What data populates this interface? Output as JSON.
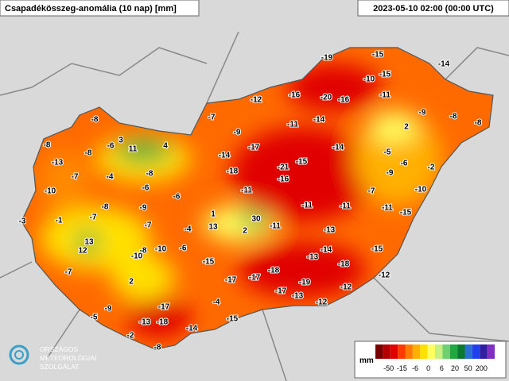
{
  "header": {
    "title": "Csapadékösszeg-anomália (10 nap) [mm]",
    "time": "2023-05-10 02:00 (00:00 UTC)"
  },
  "stations": [
    -19,
    -15,
    -14,
    -10,
    -15,
    -12,
    -16,
    -20,
    -16,
    -11,
    -9,
    -8,
    -8,
    2,
    -7,
    -9,
    -11,
    -14,
    -8,
    3,
    11,
    4,
    -8,
    -8,
    -6,
    -17,
    -14,
    -14,
    -5,
    -13,
    -15,
    -6,
    -21,
    -18,
    -9,
    -2,
    -7,
    -4,
    -8,
    -16,
    -10,
    -6,
    -11,
    -7,
    -10,
    -8,
    -9,
    -6,
    -11,
    -11,
    -11,
    -15,
    -3,
    -1,
    -7,
    -7,
    1,
    30,
    -4,
    13,
    2,
    -11,
    -13,
    13,
    12,
    -8,
    -10,
    -6,
    -14,
    -15,
    -10,
    -15,
    -18,
    -13,
    -7,
    -18,
    -12,
    2,
    -17,
    -17,
    -19,
    -12,
    -17,
    -13,
    -12,
    -4,
    -17,
    -9,
    -13,
    -18,
    -15,
    -5,
    -14,
    -2,
    -8
  ],
  "legend": {
    "unit": "mm",
    "ticks": [
      -50,
      -15,
      -6,
      0,
      6,
      20,
      50,
      200
    ],
    "colors": [
      "#7a0000",
      "#b40000",
      "#e00000",
      "#ff3a00",
      "#ff7a00",
      "#ffb000",
      "#ffe000",
      "#ffff60",
      "#c8f080",
      "#70d070",
      "#20a840",
      "#0a7a30",
      "#2a70d0",
      "#2040f0",
      "#3020a0",
      "#8030c0"
    ]
  },
  "logo": {
    "line1": "ORSZÁGOS",
    "line2": "METEOROLÓGIAI",
    "line3": "SZOLGÁLAT"
  }
}
